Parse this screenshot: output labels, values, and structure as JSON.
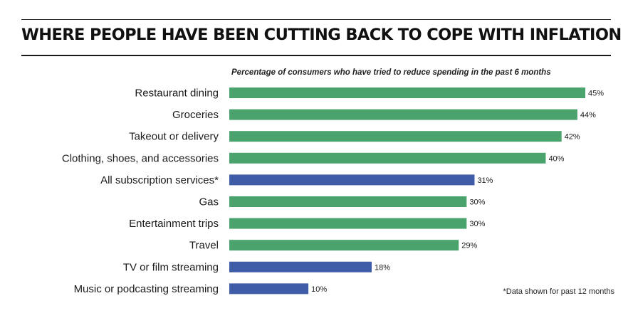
{
  "title": "WHERE PEOPLE HAVE BEEN CUTTING BACK TO COPE WITH INFLATION",
  "subtitle": "Percentage of consumers who have tried to reduce spending in the past 6 months",
  "footnote": "*Data shown for past 12 months",
  "colors": {
    "green": "#4aa36c",
    "blue": "#3f5ca8",
    "text": "#1a1a1a"
  },
  "chart_data": {
    "type": "bar",
    "orientation": "horizontal",
    "title": "WHERE PEOPLE HAVE BEEN CUTTING BACK TO COPE WITH INFLATION",
    "subtitle": "Percentage of consumers who have tried to reduce spending in the past 6 months",
    "categories": [
      "Restaurant dining",
      "Groceries",
      "Takeout or delivery",
      "Clothing, shoes, and accessories",
      "All subscription services*",
      "Gas",
      "Entertainment trips",
      "Travel",
      "TV or film streaming",
      "Music or podcasting streaming"
    ],
    "values": [
      45,
      44,
      42,
      40,
      31,
      30,
      30,
      29,
      18,
      10
    ],
    "value_labels": [
      "45%",
      "44%",
      "42%",
      "40%",
      "31%",
      "30%",
      "30%",
      "29%",
      "18%",
      "10%"
    ],
    "bar_colors": [
      "green",
      "green",
      "green",
      "green",
      "blue",
      "green",
      "green",
      "green",
      "blue",
      "blue"
    ],
    "xlim": [
      0,
      45
    ],
    "grid": false,
    "legend": "none"
  }
}
